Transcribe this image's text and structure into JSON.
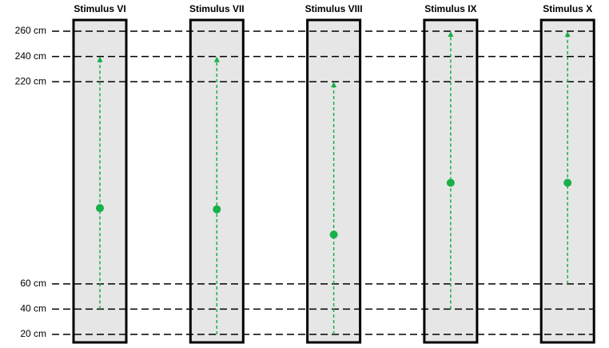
{
  "chart_data": {
    "type": "range",
    "categories": [
      "Stimulus VI",
      "Stimulus VII",
      "Stimulus VIII",
      "Stimulus IX",
      "Stimulus X"
    ],
    "starts": [
      40,
      20,
      20,
      40,
      60
    ],
    "ends": [
      240,
      240,
      220,
      260,
      260
    ],
    "values": [
      120,
      119,
      99,
      140,
      140
    ],
    "color": "#17b04a",
    "ylim": [
      20,
      260
    ],
    "yticks": [
      {
        "value": 20,
        "label": "20 cm"
      },
      {
        "value": 40,
        "label": "40 cm"
      },
      {
        "value": 60,
        "label": "60 cm"
      },
      {
        "value": 220,
        "label": "220 cm"
      },
      {
        "value": 240,
        "label": "240 cm"
      },
      {
        "value": 260,
        "label": "260 cm"
      }
    ],
    "grid": true
  }
}
